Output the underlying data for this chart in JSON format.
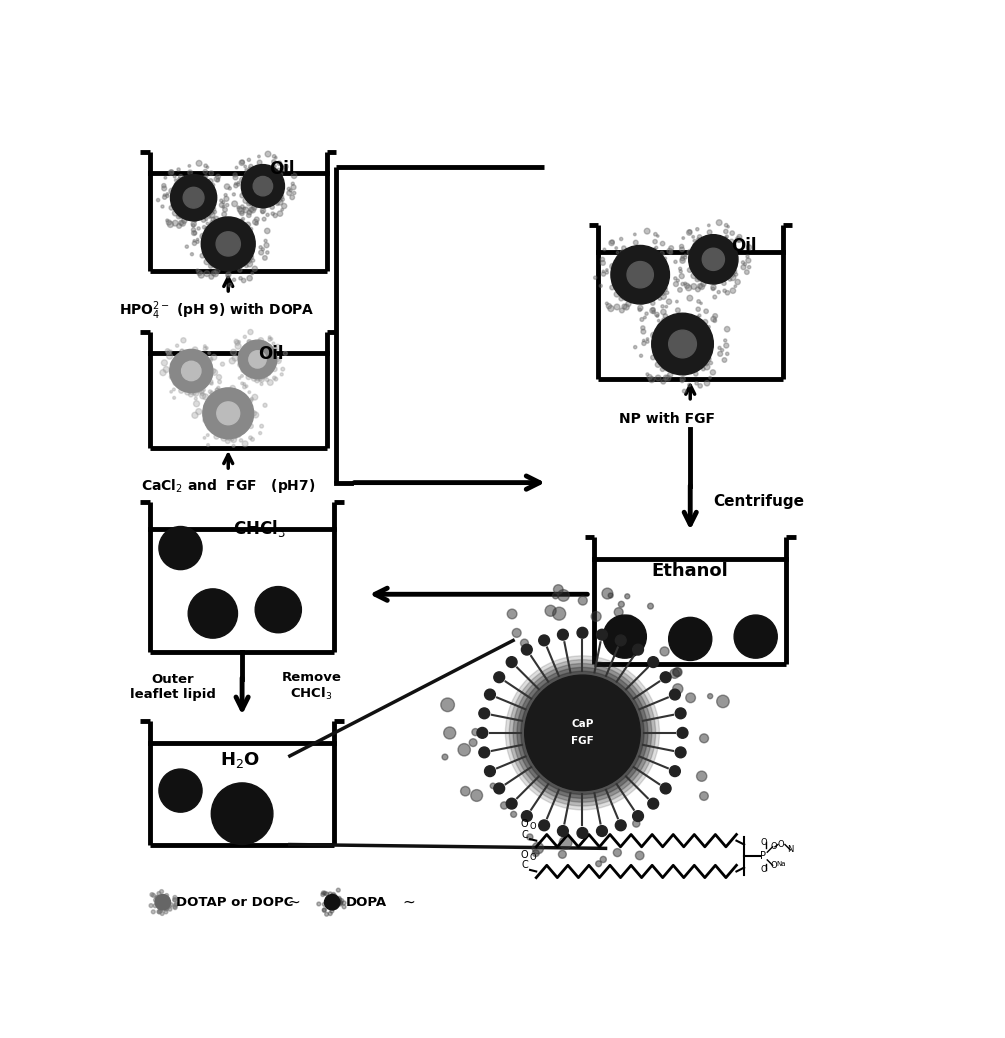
{
  "bg": "#ffffff",
  "lw_beaker": 3.5,
  "lw_arrow": 3.0,
  "particle_dark": "#1a1a1a",
  "particle_gray": "#888888",
  "particle_halo_dark": "#555555",
  "particle_halo_gray": "#aaaaaa",
  "labels": {
    "hpo4": "HPO$_4^{2-}$ (pH 9) with DOPA",
    "cacl2": "CaCl$_2$ and  FGF   (pH7)",
    "np_fgf": "NP with FGF",
    "ethanol": "Ethanol",
    "chcl3": "CHCl$_3$",
    "h2o": "H$_2$O",
    "centrifuge": "Centrifuge",
    "outer_leaflet": "Outer\nleaflet lipid",
    "remove_chcl3": "Remove\nCHCl$_3$",
    "dotap": "DOTAP or DOPC",
    "dopa": "DOPA",
    "oil": "Oil",
    "cap": "CaP",
    "fgf": "FGF"
  }
}
